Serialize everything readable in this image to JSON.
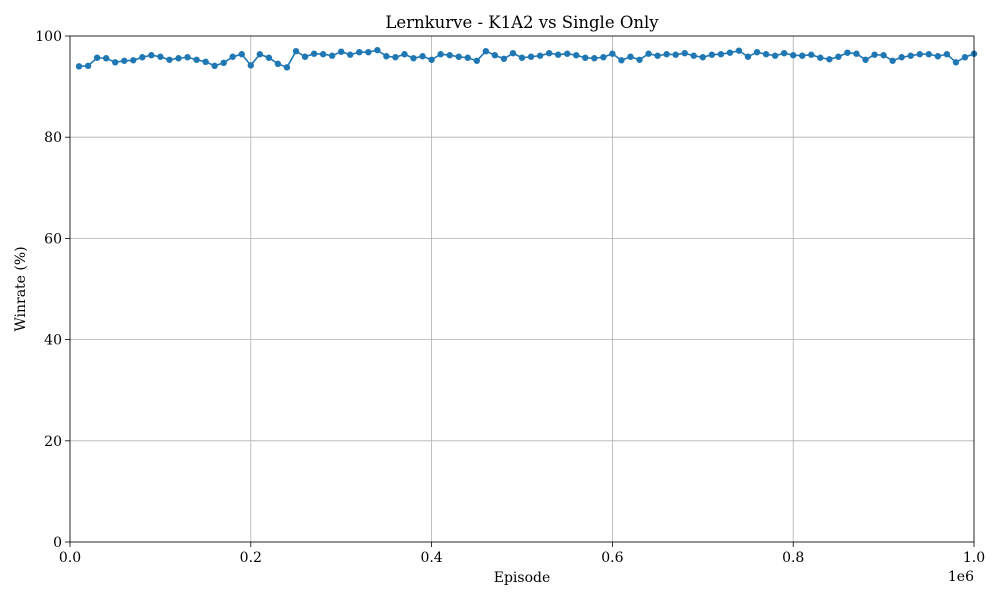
{
  "chart_data": {
    "type": "line",
    "title": "Lernkurve - K1A2 vs Single Only",
    "xlabel": "Episode",
    "ylabel": "Winrate (%)",
    "x_offset_label": "1e6",
    "xlim": [
      0,
      1000000
    ],
    "ylim": [
      0,
      100
    ],
    "x_scale": 1000000,
    "x_ticks": [
      0,
      200000,
      400000,
      600000,
      800000,
      1000000
    ],
    "x_tick_labels": [
      "0.0",
      "0.2",
      "0.4",
      "0.6",
      "0.8",
      "1.0"
    ],
    "y_ticks": [
      0,
      20,
      40,
      60,
      80,
      100
    ],
    "y_tick_labels": [
      "0",
      "20",
      "40",
      "60",
      "80",
      "100"
    ],
    "grid": true,
    "color": "#1f77b4",
    "x": [
      10000,
      20000,
      30000,
      40000,
      50000,
      60000,
      70000,
      80000,
      90000,
      100000,
      110000,
      120000,
      130000,
      140000,
      150000,
      160000,
      170000,
      180000,
      190000,
      200000,
      210000,
      220000,
      230000,
      240000,
      250000,
      260000,
      270000,
      280000,
      290000,
      300000,
      310000,
      320000,
      330000,
      340000,
      350000,
      360000,
      370000,
      380000,
      390000,
      400000,
      410000,
      420000,
      430000,
      440000,
      450000,
      460000,
      470000,
      480000,
      490000,
      500000,
      510000,
      520000,
      530000,
      540000,
      550000,
      560000,
      570000,
      580000,
      590000,
      600000,
      610000,
      620000,
      630000,
      640000,
      650000,
      660000,
      670000,
      680000,
      690000,
      700000,
      710000,
      720000,
      730000,
      740000,
      750000,
      760000,
      770000,
      780000,
      790000,
      800000,
      810000,
      820000,
      830000,
      840000,
      850000,
      860000,
      870000,
      880000,
      890000,
      900000,
      910000,
      920000,
      930000,
      940000,
      950000,
      960000,
      970000,
      980000,
      990000,
      1000000
    ],
    "y": [
      94.0,
      94.1,
      95.7,
      95.6,
      94.8,
      95.1,
      95.2,
      95.8,
      96.2,
      95.9,
      95.3,
      95.6,
      95.8,
      95.3,
      94.9,
      94.1,
      94.7,
      95.9,
      96.4,
      94.2,
      96.4,
      95.7,
      94.5,
      93.8,
      97.0,
      95.9,
      96.5,
      96.4,
      96.1,
      96.9,
      96.3,
      96.8,
      96.8,
      97.2,
      96.0,
      95.8,
      96.4,
      95.6,
      96.0,
      95.3,
      96.4,
      96.2,
      95.9,
      95.7,
      95.1,
      97.0,
      96.2,
      95.5,
      96.6,
      95.7,
      95.9,
      96.1,
      96.6,
      96.3,
      96.5,
      96.2,
      95.7,
      95.6,
      95.8,
      96.5,
      95.2,
      95.9,
      95.3,
      96.5,
      96.1,
      96.4,
      96.3,
      96.6,
      96.1,
      95.8,
      96.3,
      96.4,
      96.7,
      97.1,
      95.9,
      96.8,
      96.4,
      96.1,
      96.6,
      96.2,
      96.1,
      96.3,
      95.7,
      95.4,
      95.9,
      96.7,
      96.5,
      95.3,
      96.3,
      96.2,
      95.1,
      95.8,
      96.1,
      96.4,
      96.4,
      96.0,
      96.4,
      94.8,
      95.8,
      96.5
    ]
  }
}
